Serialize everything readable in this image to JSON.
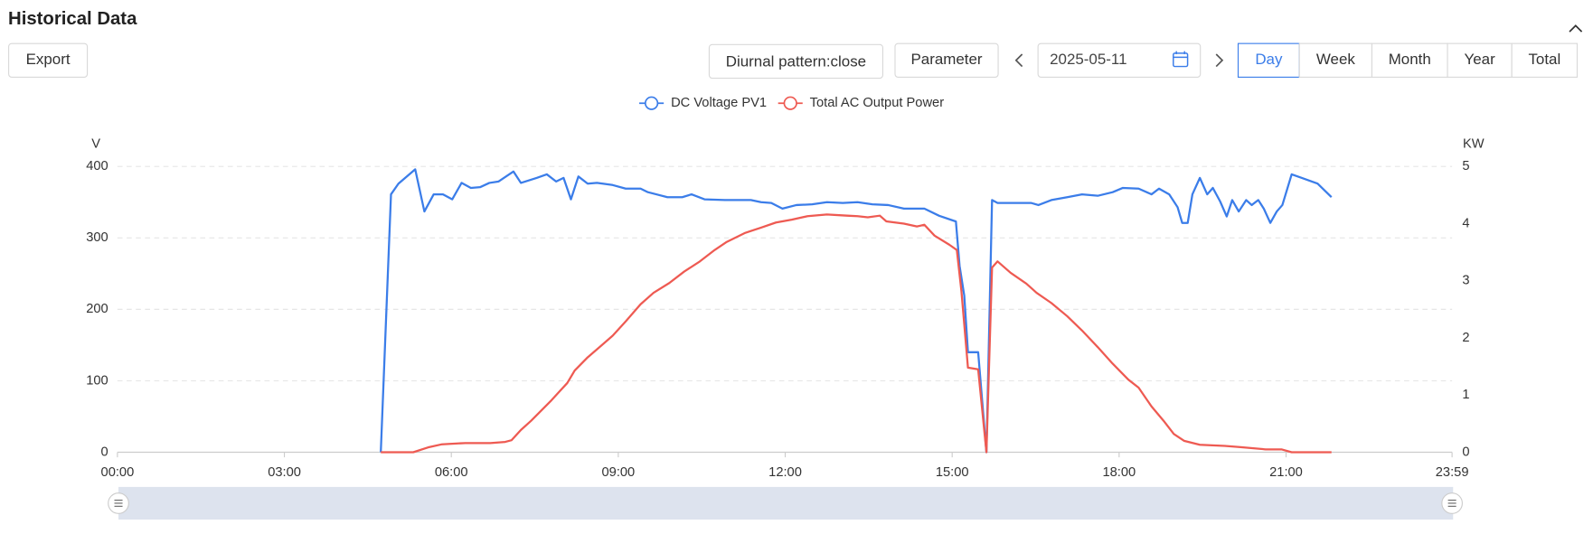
{
  "page": {
    "title": "Historical Data",
    "export": "Export",
    "diurnal": "Diurnal pattern:close",
    "parameter": "Parameter",
    "date": "2025-05-11",
    "periods": [
      "Day",
      "Week",
      "Month",
      "Year",
      "Total"
    ]
  },
  "chart_data": {
    "type": "line",
    "y_label": "V",
    "y2_label": "KW",
    "xlim": [
      0,
      1439
    ],
    "xticks": [
      {
        "value": 0,
        "label": "00:00"
      },
      {
        "value": 180,
        "label": "03:00"
      },
      {
        "value": 360,
        "label": "06:00"
      },
      {
        "value": 540,
        "label": "09:00"
      },
      {
        "value": 720,
        "label": "12:00"
      },
      {
        "value": 900,
        "label": "15:00"
      },
      {
        "value": 1080,
        "label": "18:00"
      },
      {
        "value": 1260,
        "label": "21:00"
      },
      {
        "value": 1439,
        "label": "23:59"
      }
    ],
    "ylim": [
      0,
      400
    ],
    "yticks": [
      0,
      100,
      200,
      300,
      400
    ],
    "y2lim": [
      0,
      5
    ],
    "y2ticks": [
      0,
      1,
      2,
      3,
      4,
      5
    ],
    "grid": true,
    "series": [
      {
        "name": "DC Voltage PV1",
        "color": "#3b7de9",
        "x": [
          284,
          295,
          303,
          321,
          331,
          341,
          351,
          361,
          371,
          381,
          391,
          401,
          411,
          427,
          435,
          452,
          463,
          473,
          481,
          489,
          497,
          507,
          517,
          534,
          548,
          564,
          572,
          581,
          593,
          609,
          619,
          633,
          655,
          683,
          694,
          705,
          717,
          732,
          749,
          765,
          782,
          798,
          814,
          831,
          848,
          870,
          886,
          904,
          908,
          913,
          917,
          928,
          937,
          943,
          949,
          985,
          993,
          1007,
          1024,
          1040,
          1057,
          1073,
          1084,
          1101,
          1115,
          1123,
          1134,
          1143,
          1148,
          1154,
          1159,
          1167,
          1175,
          1181,
          1189,
          1196,
          1202,
          1209,
          1217,
          1223,
          1230,
          1236,
          1243,
          1250,
          1256,
          1266,
          1277,
          1294,
          1309
        ],
        "values": [
          0,
          361,
          376,
          396,
          337,
          361,
          361,
          354,
          377,
          370,
          371,
          377,
          379,
          393,
          377,
          384,
          389,
          379,
          384,
          354,
          386,
          376,
          377,
          374,
          369,
          369,
          364,
          361,
          357,
          357,
          361,
          354,
          353,
          353,
          350,
          349,
          341,
          346,
          347,
          350,
          349,
          350,
          347,
          346,
          341,
          341,
          331,
          323,
          261,
          219,
          140,
          140,
          0,
          353,
          349,
          349,
          346,
          353,
          357,
          361,
          359,
          364,
          370,
          369,
          361,
          369,
          361,
          343,
          321,
          321,
          361,
          384,
          361,
          370,
          351,
          330,
          353,
          337,
          353,
          346,
          353,
          341,
          321,
          337,
          346,
          389,
          384,
          376,
          357
        ]
      },
      {
        "name": "Total AC Output Power",
        "color": "#ee5a52",
        "axis": "y2",
        "x": [
          284,
          319,
          336,
          350,
          375,
          402,
          418,
          425,
          435,
          446,
          457,
          468,
          477,
          485,
          493,
          507,
          517,
          534,
          548,
          564,
          578,
          595,
          611,
          628,
          644,
          657,
          677,
          694,
          710,
          727,
          744,
          765,
          787,
          798,
          809,
          822,
          829,
          848,
          862,
          870,
          881,
          897,
          905,
          910,
          917,
          928,
          937,
          943,
          949,
          963,
          980,
          991,
          1007,
          1024,
          1040,
          1057,
          1073,
          1090,
          1101,
          1115,
          1128,
          1139,
          1150,
          1167,
          1194,
          1211,
          1238,
          1255,
          1266,
          1309
        ],
        "values": [
          0,
          0,
          0.09,
          0.14,
          0.16,
          0.16,
          0.18,
          0.21,
          0.39,
          0.55,
          0.73,
          0.91,
          1.07,
          1.21,
          1.43,
          1.66,
          1.8,
          2.04,
          2.29,
          2.59,
          2.79,
          2.96,
          3.16,
          3.34,
          3.54,
          3.68,
          3.84,
          3.93,
          4.02,
          4.07,
          4.13,
          4.16,
          4.14,
          4.13,
          4.11,
          4.14,
          4.04,
          4,
          3.95,
          3.98,
          3.79,
          3.63,
          3.54,
          2.82,
          1.48,
          1.45,
          0,
          3.23,
          3.34,
          3.14,
          2.95,
          2.79,
          2.61,
          2.38,
          2.13,
          1.84,
          1.55,
          1.27,
          1.13,
          0.8,
          0.55,
          0.32,
          0.2,
          0.13,
          0.11,
          0.09,
          0.05,
          0.05,
          0,
          0
        ]
      }
    ]
  }
}
